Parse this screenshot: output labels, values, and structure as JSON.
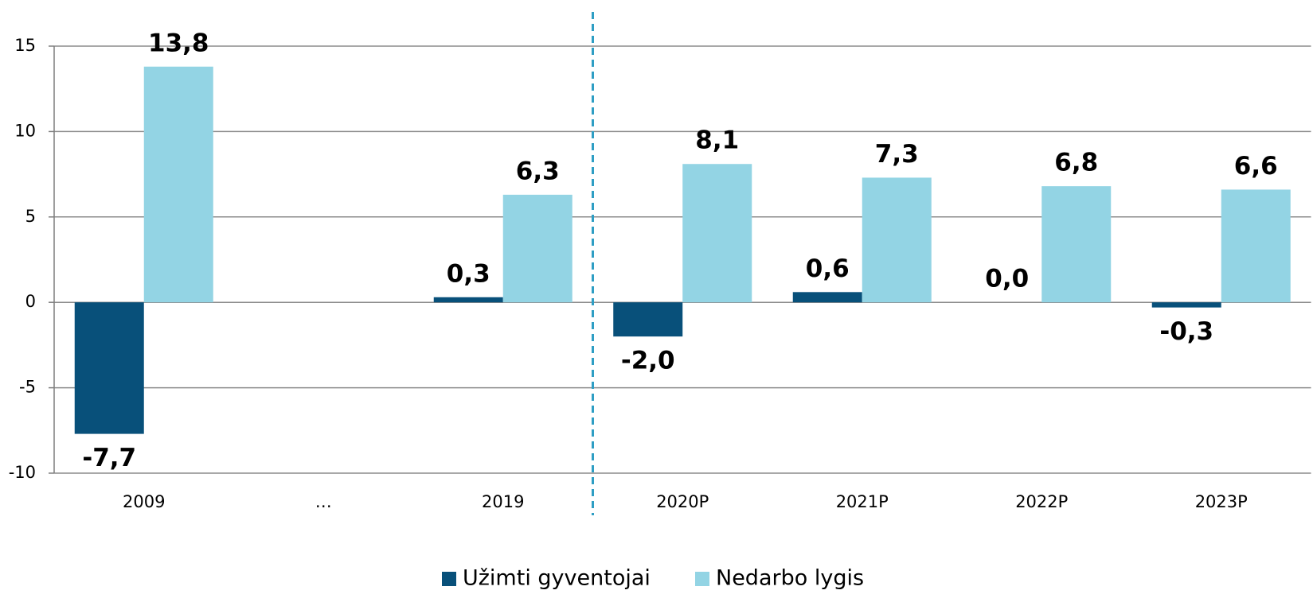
{
  "chart_data": {
    "type": "bar",
    "categories": [
      "2009",
      "…",
      "2019",
      "2020P",
      "2021P",
      "2022P",
      "2023P"
    ],
    "series": [
      {
        "name": "Užimti gyventojai",
        "color": "#08507a",
        "values": [
          -7.7,
          null,
          0.3,
          -2.0,
          0.6,
          0.0,
          -0.3
        ],
        "value_labels": [
          "-7,7",
          null,
          "0,3",
          "-2,0",
          "0,6",
          "0,0",
          "-0,3"
        ]
      },
      {
        "name": "Nedarbo lygis",
        "color": "#93d4e4",
        "values": [
          13.8,
          null,
          6.3,
          8.1,
          7.3,
          6.8,
          6.6
        ],
        "value_labels": [
          "13,8",
          null,
          "6,3",
          "8,1",
          "7,3",
          "6,8",
          "6,6"
        ]
      }
    ],
    "ylim": [
      -10,
      15
    ],
    "yticks": [
      -10,
      -5,
      0,
      5,
      10,
      15
    ],
    "grid": true,
    "legend": "bottom"
  }
}
